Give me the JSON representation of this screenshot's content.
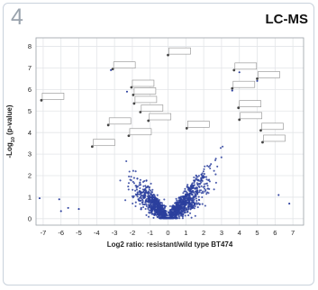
{
  "panel": {
    "number": "4",
    "title": "LC-MS"
  },
  "chart_data": {
    "type": "scatter",
    "title": "",
    "xlabel": "Log2 ratio: resistant/wild type BT474",
    "ylabel": "-Log10 (p-value)",
    "xlim": [
      -7.4,
      7.6
    ],
    "ylim": [
      -0.3,
      8.4
    ],
    "xticks": [
      -7,
      -6,
      -5,
      -4,
      -3,
      -2,
      -1,
      0,
      1,
      2,
      3,
      4,
      5,
      6,
      7
    ],
    "yticks": [
      0,
      1,
      2,
      3,
      4,
      5,
      6,
      7,
      8
    ],
    "grid": true,
    "point_color": "#2b3f9e",
    "estimated_point_count": 1400,
    "callouts": [
      {
        "label": "",
        "x": 0.0,
        "y": 7.6
      },
      {
        "label": "",
        "x": -3.1,
        "y": 6.95
      },
      {
        "label": "",
        "x": -7.1,
        "y": 5.5
      },
      {
        "label": "",
        "x": -2.05,
        "y": 6.1
      },
      {
        "label": "",
        "x": -1.95,
        "y": 5.75
      },
      {
        "label": "",
        "x": -1.9,
        "y": 5.35
      },
      {
        "label": "",
        "x": -1.55,
        "y": 4.95
      },
      {
        "label": "",
        "x": -1.1,
        "y": 4.55
      },
      {
        "label": "",
        "x": -3.35,
        "y": 4.35
      },
      {
        "label": "",
        "x": -2.2,
        "y": 3.85
      },
      {
        "label": "",
        "x": -4.25,
        "y": 3.35
      },
      {
        "label": "",
        "x": 1.05,
        "y": 4.2
      },
      {
        "label": "",
        "x": 3.7,
        "y": 6.9
      },
      {
        "label": "",
        "x": 5.0,
        "y": 6.5
      },
      {
        "label": "",
        "x": 3.6,
        "y": 6.05
      },
      {
        "label": "",
        "x": 3.95,
        "y": 5.15
      },
      {
        "label": "",
        "x": 4.0,
        "y": 4.6
      },
      {
        "label": "",
        "x": 5.2,
        "y": 4.1
      },
      {
        "label": "",
        "x": 5.3,
        "y": 3.55
      }
    ]
  }
}
